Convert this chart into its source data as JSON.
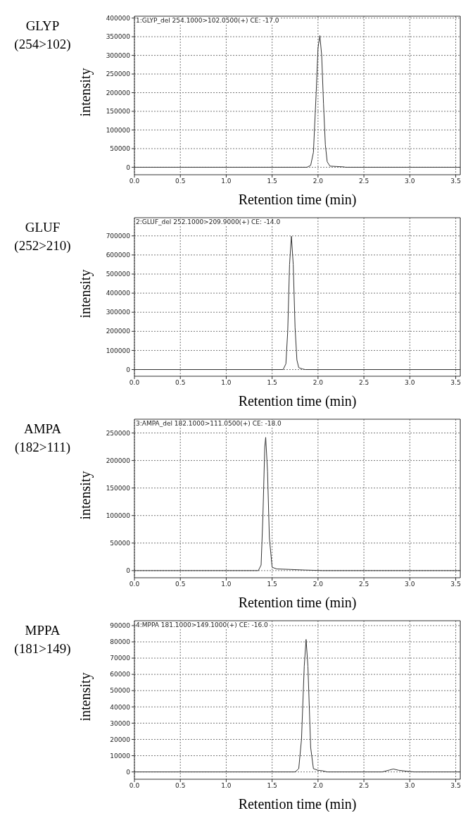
{
  "chart_data": [
    {
      "type": "line",
      "title": "GLYP",
      "subtitle": "(254>102)",
      "xlabel": "Retention time (min)",
      "ylabel": "intensity",
      "annotations": [
        "1:GLYP_del 254.1000>102.0500(+) CE: -17.0"
      ],
      "grid": true,
      "xlim": [
        0,
        3.55
      ],
      "xticks": [
        {
          "value": 0,
          "label": "0.0"
        },
        {
          "value": 0.5,
          "label": "0.5"
        },
        {
          "value": 1,
          "label": "1.0"
        },
        {
          "value": 1.5,
          "label": "1.5"
        },
        {
          "value": 2,
          "label": "2.0"
        },
        {
          "value": 2.5,
          "label": "2.5"
        },
        {
          "value": 3,
          "label": "3.0"
        },
        {
          "value": 3.5,
          "label": "3.5"
        }
      ],
      "ylim": [
        -20000,
        405000
      ],
      "yticks": [
        0,
        50000,
        100000,
        150000,
        200000,
        250000,
        300000,
        350000,
        400000
      ],
      "series": [
        {
          "color": "#333333",
          "x": [
            0,
            1.88,
            1.92,
            1.95,
            1.98,
            2.0,
            2.02,
            2.04,
            2.06,
            2.08,
            2.1,
            2.13,
            2.2,
            2.28,
            2.3,
            3.55
          ],
          "values": [
            0,
            0,
            5000,
            40000,
            200000,
            320000,
            353000,
            300000,
            170000,
            60000,
            15000,
            3000,
            2000,
            1000,
            0,
            0
          ]
        }
      ]
    },
    {
      "type": "line",
      "title": "GLUF",
      "subtitle": "(252>210)",
      "xlabel": "Retention time (min)",
      "ylabel": "intensity",
      "annotations": [
        "2:GLUF_del 252.1000>209.9000(+) CE: -14.0"
      ],
      "grid": true,
      "xlim": [
        0,
        3.55
      ],
      "xticks": [
        {
          "value": 0,
          "label": "0.0"
        },
        {
          "value": 0.5,
          "label": "0.5"
        },
        {
          "value": 1,
          "label": "1.0"
        },
        {
          "value": 1.5,
          "label": "1.5"
        },
        {
          "value": 2,
          "label": "2.0"
        },
        {
          "value": 2.5,
          "label": "2.5"
        },
        {
          "value": 3,
          "label": "3.0"
        },
        {
          "value": 3.5,
          "label": "3.5"
        }
      ],
      "ylim": [
        -35000,
        795000
      ],
      "yticks": [
        0,
        100000,
        200000,
        300000,
        400000,
        500000,
        600000,
        700000
      ],
      "series": [
        {
          "color": "#333333",
          "x": [
            0,
            1.62,
            1.65,
            1.67,
            1.69,
            1.71,
            1.73,
            1.75,
            1.77,
            1.79,
            1.83,
            1.86,
            3.55
          ],
          "values": [
            0,
            0,
            30000,
            200000,
            550000,
            698000,
            550000,
            220000,
            50000,
            10000,
            3000,
            0,
            0
          ]
        }
      ]
    },
    {
      "type": "line",
      "title": "AMPA",
      "subtitle": "(182>111)",
      "xlabel": "Retention time (min)",
      "ylabel": "intensity",
      "annotations": [
        "3:AMPA_del 182.1000>111.0500(+) CE: -18.0"
      ],
      "grid": true,
      "xlim": [
        0,
        3.55
      ],
      "xticks": [
        {
          "value": 0,
          "label": "0.0"
        },
        {
          "value": 0.5,
          "label": "0.5"
        },
        {
          "value": 1,
          "label": "1.0"
        },
        {
          "value": 1.5,
          "label": "1.5"
        },
        {
          "value": 2,
          "label": "2.0"
        },
        {
          "value": 2.5,
          "label": "2.5"
        },
        {
          "value": 3,
          "label": "3.0"
        },
        {
          "value": 3.5,
          "label": "3.5"
        }
      ],
      "ylim": [
        -13000,
        275000
      ],
      "yticks": [
        0,
        50000,
        100000,
        150000,
        200000,
        250000
      ],
      "series": [
        {
          "color": "#333333",
          "x": [
            0,
            1.35,
            1.38,
            1.4,
            1.42,
            1.43,
            1.45,
            1.47,
            1.5,
            1.55,
            1.7,
            1.85,
            2.05,
            3.55
          ],
          "values": [
            0,
            0,
            10000,
            100000,
            225000,
            242000,
            180000,
            60000,
            6000,
            3000,
            2000,
            1000,
            0,
            0
          ]
        }
      ]
    },
    {
      "type": "line",
      "title": "MPPA",
      "subtitle": "(181>149)",
      "xlabel": "Retention time (min)",
      "ylabel": "intensity",
      "annotations": [
        "4:MPPA 181.1000>149.1000(+) CE: -16.0"
      ],
      "grid": true,
      "xlim": [
        0,
        3.55
      ],
      "xticks": [
        {
          "value": 0,
          "label": "0.0"
        },
        {
          "value": 0.5,
          "label": "0.5"
        },
        {
          "value": 1,
          "label": "1.0"
        },
        {
          "value": 1.5,
          "label": "1.5"
        },
        {
          "value": 2,
          "label": "2.0"
        },
        {
          "value": 2.5,
          "label": "2.5"
        },
        {
          "value": 3,
          "label": "3.0"
        },
        {
          "value": 3.5,
          "label": "3.5"
        }
      ],
      "ylim": [
        -4500,
        93000
      ],
      "yticks": [
        0,
        10000,
        20000,
        30000,
        40000,
        50000,
        60000,
        70000,
        80000,
        90000
      ],
      "series": [
        {
          "color": "#333333",
          "x": [
            0,
            1.75,
            1.79,
            1.82,
            1.85,
            1.87,
            1.89,
            1.92,
            1.95,
            2.0,
            2.05,
            2.1,
            2.7,
            2.78,
            2.82,
            2.88,
            3.0,
            3.05,
            3.55
          ],
          "values": [
            0,
            0,
            2000,
            20000,
            65000,
            81500,
            65000,
            15000,
            2000,
            1000,
            700,
            0,
            0,
            1200,
            1800,
            1000,
            200,
            0,
            0
          ]
        }
      ]
    }
  ]
}
